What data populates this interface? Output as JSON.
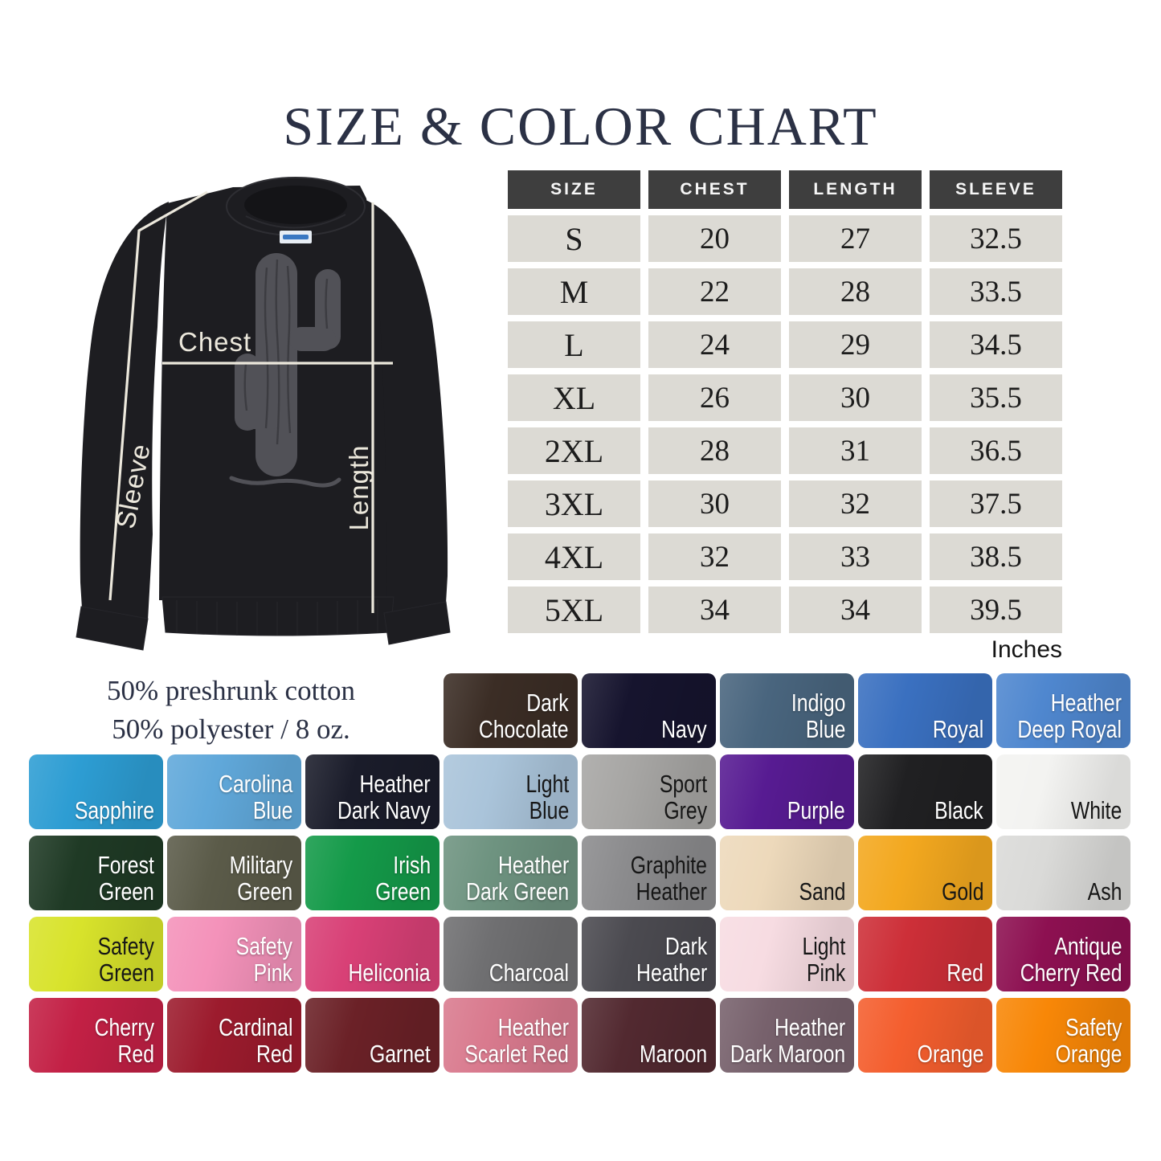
{
  "title": "SIZE & COLOR CHART",
  "size_table": {
    "headers": [
      "SIZE",
      "CHEST",
      "LENGTH",
      "SLEEVE"
    ],
    "rows": [
      [
        "S",
        "20",
        "27",
        "32.5"
      ],
      [
        "M",
        "22",
        "28",
        "33.5"
      ],
      [
        "L",
        "24",
        "29",
        "34.5"
      ],
      [
        "XL",
        "26",
        "30",
        "35.5"
      ],
      [
        "2XL",
        "28",
        "31",
        "36.5"
      ],
      [
        "3XL",
        "30",
        "32",
        "37.5"
      ],
      [
        "4XL",
        "32",
        "33",
        "38.5"
      ],
      [
        "5XL",
        "34",
        "34",
        "39.5"
      ]
    ],
    "unit_label": "Inches"
  },
  "product": {
    "fabric_line1": "50% preshrunk cotton",
    "fabric_line2": "50% polyester / 8 oz.",
    "measure_labels": {
      "chest": "Chest",
      "sleeve": "Sleeve",
      "length": "Length"
    }
  },
  "colors": {
    "title_navy": "#2b3145",
    "table_header_bg": "#3e3e3e",
    "table_cell_bg": "#dcdad4",
    "measure_line": "#ece8dc",
    "shirt_black": "#1d1d21",
    "cactus_grey": "#515157"
  },
  "swatch_rows": [
    [
      {
        "name": "Dark Chocolate",
        "lines": [
          "Dark",
          "Chocolate"
        ],
        "hex": "#3b2d25",
        "text_color": "white"
      },
      {
        "name": "Navy",
        "lines": [
          "Navy"
        ],
        "hex": "#16142e",
        "text_color": "white"
      },
      {
        "name": "Indigo Blue",
        "lines": [
          "Indigo",
          "Blue"
        ],
        "hex": "#49657e",
        "text_color": "white"
      },
      {
        "name": "Royal",
        "lines": [
          "Royal"
        ],
        "hex": "#3a70c0",
        "text_color": "white"
      },
      {
        "name": "Heather Deep Royal",
        "lines": [
          "Heather",
          "Deep Royal"
        ],
        "hex": "#4f87cf",
        "text_color": "white"
      }
    ],
    [
      {
        "name": "Sapphire",
        "lines": [
          "Sapphire"
        ],
        "hex": "#2d9dd3",
        "text_color": "white"
      },
      {
        "name": "Carolina Blue",
        "lines": [
          "Carolina",
          "Blue"
        ],
        "hex": "#60a8da",
        "text_color": "white"
      },
      {
        "name": "Heather Dark Navy",
        "lines": [
          "Heather",
          "Dark Navy"
        ],
        "hex": "#1a1c2a",
        "text_color": "white"
      },
      {
        "name": "Light Blue",
        "lines": [
          "Light",
          "Blue"
        ],
        "hex": "#aac4da",
        "text_color": "black"
      },
      {
        "name": "Sport Grey",
        "lines": [
          "Sport",
          "Grey"
        ],
        "hex": "#a7a6a4",
        "text_color": "black"
      },
      {
        "name": "Purple",
        "lines": [
          "Purple"
        ],
        "hex": "#571b92",
        "text_color": "white"
      },
      {
        "name": "Black",
        "lines": [
          "Black"
        ],
        "hex": "#202022",
        "text_color": "white"
      },
      {
        "name": "White",
        "lines": [
          "White"
        ],
        "hex": "#f3f3f1",
        "text_color": "black"
      }
    ],
    [
      {
        "name": "Forest Green",
        "lines": [
          "Forest",
          "Green"
        ],
        "hex": "#1f3a25",
        "text_color": "white"
      },
      {
        "name": "Military Green",
        "lines": [
          "Military",
          "Green"
        ],
        "hex": "#5b5b49",
        "text_color": "white"
      },
      {
        "name": "Irish Green",
        "lines": [
          "Irish",
          "Green"
        ],
        "hex": "#149a49",
        "text_color": "white"
      },
      {
        "name": "Heather Dark Green",
        "lines": [
          "Heather",
          "Dark Green"
        ],
        "hex": "#6e9380",
        "text_color": "white"
      },
      {
        "name": "Graphite Heather",
        "lines": [
          "Graphite",
          "Heather"
        ],
        "hex": "#8b8b8d",
        "text_color": "black"
      },
      {
        "name": "Sand",
        "lines": [
          "Sand"
        ],
        "hex": "#edd9bb",
        "text_color": "black"
      },
      {
        "name": "Gold",
        "lines": [
          "Gold"
        ],
        "hex": "#f3a81f",
        "text_color": "black"
      },
      {
        "name": "Ash",
        "lines": [
          "Ash"
        ],
        "hex": "#dadad8",
        "text_color": "black"
      }
    ],
    [
      {
        "name": "Safety Green",
        "lines": [
          "Safety",
          "Green"
        ],
        "hex": "#d8e32b",
        "text_color": "black"
      },
      {
        "name": "Safety Pink",
        "lines": [
          "Safety",
          "Pink"
        ],
        "hex": "#f492ba",
        "text_color": "white"
      },
      {
        "name": "Heliconia",
        "lines": [
          "Heliconia"
        ],
        "hex": "#d84076",
        "text_color": "white"
      },
      {
        "name": "Charcoal",
        "lines": [
          "Charcoal"
        ],
        "hex": "#6f6f71",
        "text_color": "white"
      },
      {
        "name": "Dark Heather",
        "lines": [
          "Dark",
          "Heather"
        ],
        "hex": "#4b4a50",
        "text_color": "white"
      },
      {
        "name": "Light Pink",
        "lines": [
          "Light",
          "Pink"
        ],
        "hex": "#f7dce2",
        "text_color": "black"
      },
      {
        "name": "Red",
        "lines": [
          "Red"
        ],
        "hex": "#cd2f38",
        "text_color": "white"
      },
      {
        "name": "Antique Cherry Red",
        "lines": [
          "Antique",
          "Cherry Red"
        ],
        "hex": "#8d1051",
        "text_color": "white"
      }
    ],
    [
      {
        "name": "Cherry Red",
        "lines": [
          "Cherry",
          "Red"
        ],
        "hex": "#c32045",
        "text_color": "white"
      },
      {
        "name": "Cardinal Red",
        "lines": [
          "Cardinal",
          "Red"
        ],
        "hex": "#9c1b2d",
        "text_color": "white"
      },
      {
        "name": "Garnet",
        "lines": [
          "Garnet"
        ],
        "hex": "#6b2127",
        "text_color": "white"
      },
      {
        "name": "Heather Scarlet Red",
        "lines": [
          "Heather",
          "Scarlet Red"
        ],
        "hex": "#d97a8e",
        "text_color": "white"
      },
      {
        "name": "Maroon",
        "lines": [
          "Maroon"
        ],
        "hex": "#522930",
        "text_color": "white"
      },
      {
        "name": "Heather Dark Maroon",
        "lines": [
          "Heather",
          "Dark Maroon"
        ],
        "hex": "#77616c",
        "text_color": "white"
      },
      {
        "name": "Orange",
        "lines": [
          "Orange"
        ],
        "hex": "#f45e2e",
        "text_color": "white"
      },
      {
        "name": "Safety Orange",
        "lines": [
          "Safety",
          "Orange"
        ],
        "hex": "#f88707",
        "text_color": "white"
      }
    ]
  ],
  "chart_data": {
    "type": "table",
    "title": "SIZE & COLOR CHART",
    "columns": [
      "SIZE",
      "CHEST",
      "LENGTH",
      "SLEEVE"
    ],
    "rows": [
      [
        "S",
        20,
        27,
        32.5
      ],
      [
        "M",
        22,
        28,
        33.5
      ],
      [
        "L",
        24,
        29,
        34.5
      ],
      [
        "XL",
        26,
        30,
        35.5
      ],
      [
        "2XL",
        28,
        31,
        36.5
      ],
      [
        "3XL",
        30,
        32,
        37.5
      ],
      [
        "4XL",
        32,
        33,
        38.5
      ],
      [
        "5XL",
        34,
        34,
        39.5
      ]
    ],
    "unit": "Inches",
    "available_colors": [
      "Dark Chocolate",
      "Navy",
      "Indigo Blue",
      "Royal",
      "Heather Deep Royal",
      "Sapphire",
      "Carolina Blue",
      "Heather Dark Navy",
      "Light Blue",
      "Sport Grey",
      "Purple",
      "Black",
      "White",
      "Forest Green",
      "Military Green",
      "Irish Green",
      "Heather Dark Green",
      "Graphite Heather",
      "Sand",
      "Gold",
      "Ash",
      "Safety Green",
      "Safety Pink",
      "Heliconia",
      "Charcoal",
      "Dark Heather",
      "Light Pink",
      "Red",
      "Antique Cherry Red",
      "Cherry Red",
      "Cardinal Red",
      "Garnet",
      "Heather Scarlet Red",
      "Maroon",
      "Heather Dark Maroon",
      "Orange",
      "Safety Orange"
    ]
  }
}
